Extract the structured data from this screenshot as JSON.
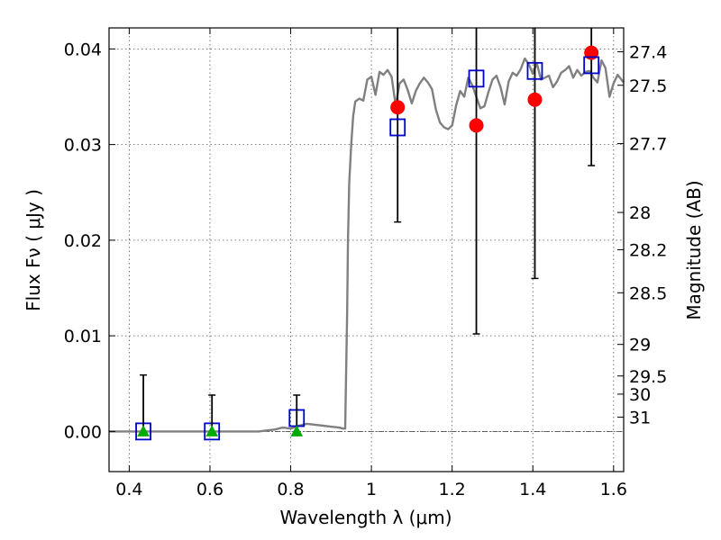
{
  "chart_data": {
    "type": "scatter",
    "title": "",
    "xlabel": "Wavelength  λ (μm)",
    "ylabel": "Flux  Fν  ( μJy )",
    "y2label": "Magnitude (AB)",
    "xlim": [
      0.35,
      1.625
    ],
    "ylim": [
      -0.0042,
      0.0422
    ],
    "grid": true,
    "x_ticks": [
      0.4,
      0.6,
      0.8,
      1.0,
      1.2,
      1.4,
      1.6
    ],
    "x_tick_labels": [
      "0.4",
      "0.6",
      "0.8",
      "1",
      "1.2",
      "1.4",
      "1.6"
    ],
    "y_ticks": [
      0.0,
      0.01,
      0.02,
      0.03,
      0.04
    ],
    "y_tick_labels": [
      "0.00",
      "0.01",
      "0.02",
      "0.03",
      "0.04"
    ],
    "mag_ticks": [
      {
        "label": "27.4",
        "flux": 0.0397
      },
      {
        "label": "27.5",
        "flux": 0.0362
      },
      {
        "label": "27.7",
        "flux": 0.0301
      },
      {
        "label": "28",
        "flux": 0.0229
      },
      {
        "label": "28.2",
        "flux": 0.019
      },
      {
        "label": "28.5",
        "flux": 0.0145
      },
      {
        "label": "29",
        "flux": 0.0091
      },
      {
        "label": "29.5",
        "flux": 0.0058
      },
      {
        "label": "30",
        "flux": 0.0039
      },
      {
        "label": "31",
        "flux": 0.0015
      }
    ],
    "series": [
      {
        "kind": "line",
        "color": "#808080",
        "x": [
          0.35,
          0.5,
          0.7,
          0.72,
          0.74,
          0.76,
          0.78,
          0.8,
          0.82,
          0.84,
          0.86,
          0.88,
          0.9,
          0.92,
          0.93,
          0.935,
          0.94,
          0.942,
          0.945,
          0.95,
          0.955,
          0.96,
          0.97,
          0.98,
          0.99,
          1.0,
          1.01,
          1.02,
          1.03,
          1.04,
          1.05,
          1.06,
          1.07,
          1.08,
          1.09,
          1.1,
          1.11,
          1.12,
          1.13,
          1.14,
          1.15,
          1.16,
          1.17,
          1.18,
          1.19,
          1.2,
          1.21,
          1.22,
          1.23,
          1.24,
          1.25,
          1.26,
          1.27,
          1.28,
          1.29,
          1.3,
          1.31,
          1.32,
          1.33,
          1.34,
          1.35,
          1.36,
          1.37,
          1.38,
          1.39,
          1.4,
          1.41,
          1.42,
          1.43,
          1.44,
          1.45,
          1.46,
          1.47,
          1.48,
          1.49,
          1.5,
          1.51,
          1.52,
          1.53,
          1.54,
          1.55,
          1.56,
          1.57,
          1.58,
          1.59,
          1.6,
          1.61,
          1.625
        ],
        "values": [
          0.0,
          0.0,
          0.0,
          0.0,
          0.0001,
          0.0002,
          0.0004,
          0.0003,
          0.0006,
          0.0008,
          0.0007,
          0.0006,
          0.0005,
          0.0004,
          0.0003,
          0.0003,
          0.0125,
          0.02,
          0.026,
          0.03,
          0.033,
          0.0345,
          0.0348,
          0.0346,
          0.0368,
          0.0371,
          0.0352,
          0.0376,
          0.0373,
          0.0378,
          0.0371,
          0.0341,
          0.0364,
          0.0368,
          0.0357,
          0.0343,
          0.0356,
          0.0364,
          0.037,
          0.0365,
          0.0358,
          0.0336,
          0.0323,
          0.0318,
          0.0316,
          0.032,
          0.0341,
          0.0356,
          0.035,
          0.037,
          0.0362,
          0.035,
          0.0338,
          0.034,
          0.0355,
          0.0368,
          0.0372,
          0.036,
          0.0342,
          0.0366,
          0.0375,
          0.0372,
          0.0379,
          0.039,
          0.0384,
          0.0374,
          0.0385,
          0.0368,
          0.037,
          0.0372,
          0.036,
          0.0366,
          0.0375,
          0.0378,
          0.0382,
          0.037,
          0.0378,
          0.0372,
          0.0376,
          0.0377,
          0.037,
          0.0365,
          0.0388,
          0.038,
          0.035,
          0.0364,
          0.0373,
          0.0365
        ]
      },
      {
        "kind": "points",
        "marker": "circle",
        "color": "#ff0000",
        "x": [
          1.065,
          1.26,
          1.405,
          1.545
        ],
        "values": [
          0.0339,
          0.032,
          0.0347,
          0.0396
        ],
        "err_low": [
          0.012,
          0.0218,
          0.0187,
          0.0118
        ],
        "err_high": [
          0.02,
          0.02,
          0.02,
          0.02
        ]
      },
      {
        "kind": "points",
        "marker": "square",
        "color": "#0000cc",
        "x": [
          0.435,
          0.605,
          0.815,
          1.065,
          1.26,
          1.405,
          1.545
        ],
        "values": [
          0.0,
          0.0,
          0.0014,
          0.0318,
          0.0369,
          0.0377,
          0.0383
        ]
      },
      {
        "kind": "points",
        "marker": "triangle",
        "color": "#00aa00",
        "x": [
          0.435,
          0.605,
          0.815
        ],
        "values": [
          0.0,
          0.0,
          0.0
        ],
        "err_low": [
          0.0,
          0.0,
          0.0
        ],
        "err_high": [
          0.0059,
          0.0038,
          0.0038
        ]
      }
    ]
  }
}
